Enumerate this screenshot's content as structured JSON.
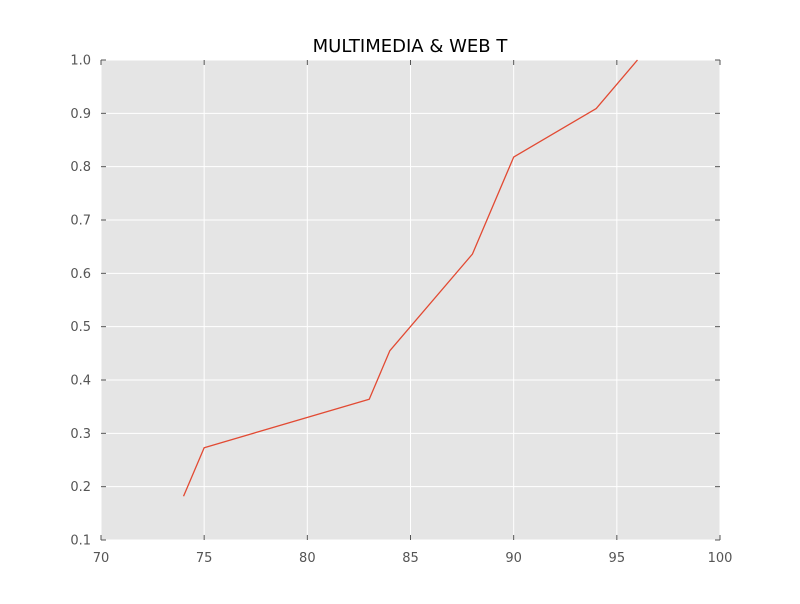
{
  "chart_data": {
    "type": "line",
    "title": "MULTIMEDIA & WEB T",
    "xlabel": "",
    "ylabel": "",
    "xlim": [
      70,
      100
    ],
    "ylim": [
      0.1,
      1.0
    ],
    "x_ticks": [
      70,
      75,
      80,
      85,
      90,
      95,
      100
    ],
    "x_tick_labels": [
      "70",
      "75",
      "80",
      "85",
      "90",
      "95",
      "100"
    ],
    "y_ticks": [
      0.1,
      0.2,
      0.3,
      0.4,
      0.5,
      0.6,
      0.7,
      0.8,
      0.9,
      1.0
    ],
    "y_tick_labels": [
      "0.1",
      "0.2",
      "0.3",
      "0.4",
      "0.5",
      "0.6",
      "0.7",
      "0.8",
      "0.9",
      "1.0"
    ],
    "grid": true,
    "series": [
      {
        "x": [
          74,
          75,
          83,
          84,
          88,
          90,
          94,
          96
        ],
        "y": [
          0.182,
          0.273,
          0.364,
          0.455,
          0.636,
          0.818,
          0.909,
          1.0
        ],
        "color": "#e24a33"
      }
    ],
    "colors": {
      "plot_background": "#e5e5e5",
      "grid": "#ffffff",
      "tick_marks": "#555555"
    }
  }
}
